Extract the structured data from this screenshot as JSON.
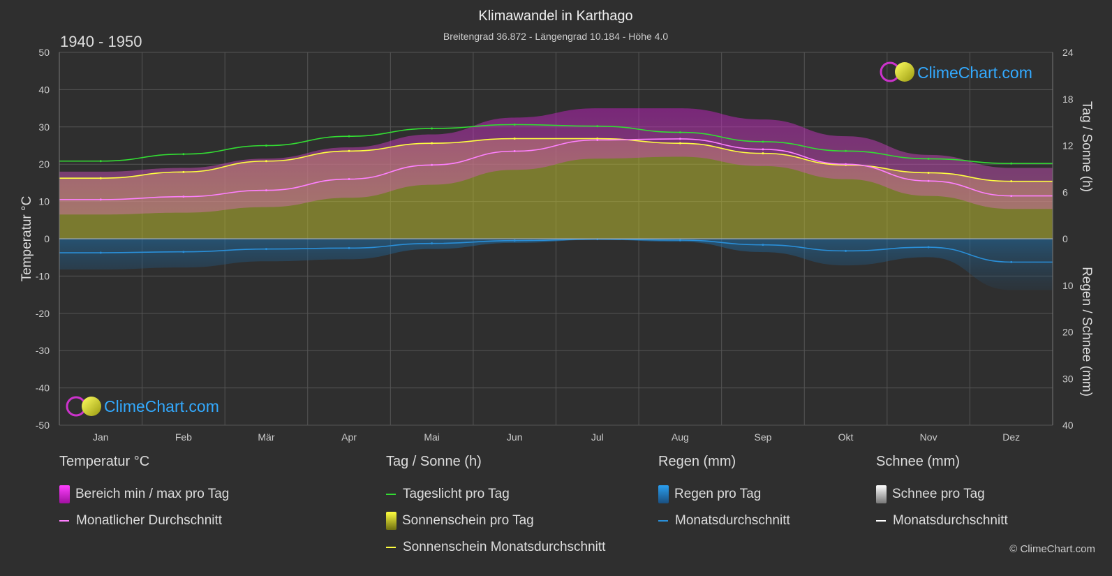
{
  "colors": {
    "background": "#2f2f2f",
    "grid": "#555555",
    "temp_range": "#e040e0",
    "temp_avg": "#ff80ff",
    "daylight": "#33dd33",
    "sunshine_fill": "#b8b830",
    "sunshine_avg": "#ffff40",
    "rain": "#2a8fd8",
    "rain_avg": "#2a8fd8",
    "snow": "#dddddd",
    "brand": "#33aaff"
  },
  "brand": {
    "name": "ClimeChart.com",
    "copyright": "© ClimeChart.com"
  },
  "chart_data": {
    "type": "line",
    "title": "Klimawandel in Karthago",
    "subtitle": "Breitengrad 36.872 - Längengrad 10.184 - Höhe 4.0",
    "period": "1940 - 1950",
    "y_left_label": "Temperatur °C",
    "y_right_top_label": "Tag / Sonne (h)",
    "y_right_bottom_label": "Regen / Schnee (mm)",
    "y_left_range": [
      -50,
      50
    ],
    "y_left_ticks": [
      50,
      40,
      30,
      20,
      10,
      0,
      -10,
      -20,
      -30,
      -40,
      -50
    ],
    "y_right_top_range": [
      0,
      24
    ],
    "y_right_top_ticks": [
      24,
      18,
      12,
      6,
      0
    ],
    "y_right_bottom_range": [
      0,
      40
    ],
    "y_right_bottom_ticks": [
      0,
      10,
      20,
      30,
      40
    ],
    "months": [
      "Jan",
      "Feb",
      "Mär",
      "Apr",
      "Mai",
      "Jun",
      "Jul",
      "Aug",
      "Sep",
      "Okt",
      "Nov",
      "Dez"
    ],
    "grid": true,
    "series": [
      {
        "name": "Tageslicht pro Tag",
        "axis": "hours",
        "values": [
          10.0,
          10.9,
          12.0,
          13.2,
          14.2,
          14.7,
          14.5,
          13.7,
          12.5,
          11.3,
          10.3,
          9.7
        ]
      },
      {
        "name": "Sonnenschein Monatsdurchschnitt",
        "axis": "hours",
        "values": [
          7.8,
          8.6,
          10.0,
          11.3,
          12.3,
          12.9,
          12.9,
          12.3,
          11.0,
          9.5,
          8.5,
          7.4
        ]
      },
      {
        "name": "Monatlicher Durchschnitt",
        "axis": "temp",
        "values": [
          10.5,
          11.3,
          13.0,
          16.0,
          19.8,
          23.5,
          26.5,
          26.8,
          24.0,
          20.0,
          15.5,
          11.5
        ]
      },
      {
        "name": "Bereich min / max pro Tag",
        "axis": "temp",
        "min": [
          6.5,
          7.0,
          8.5,
          11.0,
          14.5,
          18.5,
          21.5,
          22.0,
          19.5,
          16.0,
          11.5,
          8.0
        ],
        "max": [
          18.0,
          19.0,
          21.5,
          24.5,
          28.0,
          32.5,
          35.0,
          35.0,
          32.0,
          27.5,
          22.5,
          19.0
        ]
      },
      {
        "name": "Regen Monatsdurchschnitt",
        "axis": "rain",
        "values": [
          3.0,
          2.8,
          2.2,
          2.0,
          1.0,
          0.4,
          0.1,
          0.3,
          1.3,
          2.6,
          1.8,
          5.0
        ]
      }
    ]
  },
  "legend": {
    "groups": [
      {
        "title": "Temperatur °C",
        "items": [
          {
            "label": "Bereich min / max pro Tag",
            "kind": "box",
            "color": "#e040e0"
          },
          {
            "label": "Monatlicher Durchschnitt",
            "kind": "line",
            "color": "#ff80ff"
          }
        ]
      },
      {
        "title": "Tag / Sonne (h)",
        "items": [
          {
            "label": "Tageslicht pro Tag",
            "kind": "line",
            "color": "#33dd33"
          },
          {
            "label": "Sonnenschein pro Tag",
            "kind": "box",
            "color": "#c8c830"
          },
          {
            "label": "Sonnenschein Monatsdurchschnitt",
            "kind": "line",
            "color": "#ffff40"
          }
        ]
      },
      {
        "title": "Regen (mm)",
        "items": [
          {
            "label": "Regen pro Tag",
            "kind": "box",
            "color": "#2a8fd8"
          },
          {
            "label": "Monatsdurchschnitt",
            "kind": "line",
            "color": "#2a8fd8"
          }
        ]
      },
      {
        "title": "Schnee (mm)",
        "items": [
          {
            "label": "Schnee pro Tag",
            "kind": "box",
            "color": "#dddddd"
          },
          {
            "label": "Monatsdurchschnitt",
            "kind": "line",
            "color": "#ffffff"
          }
        ]
      }
    ]
  }
}
